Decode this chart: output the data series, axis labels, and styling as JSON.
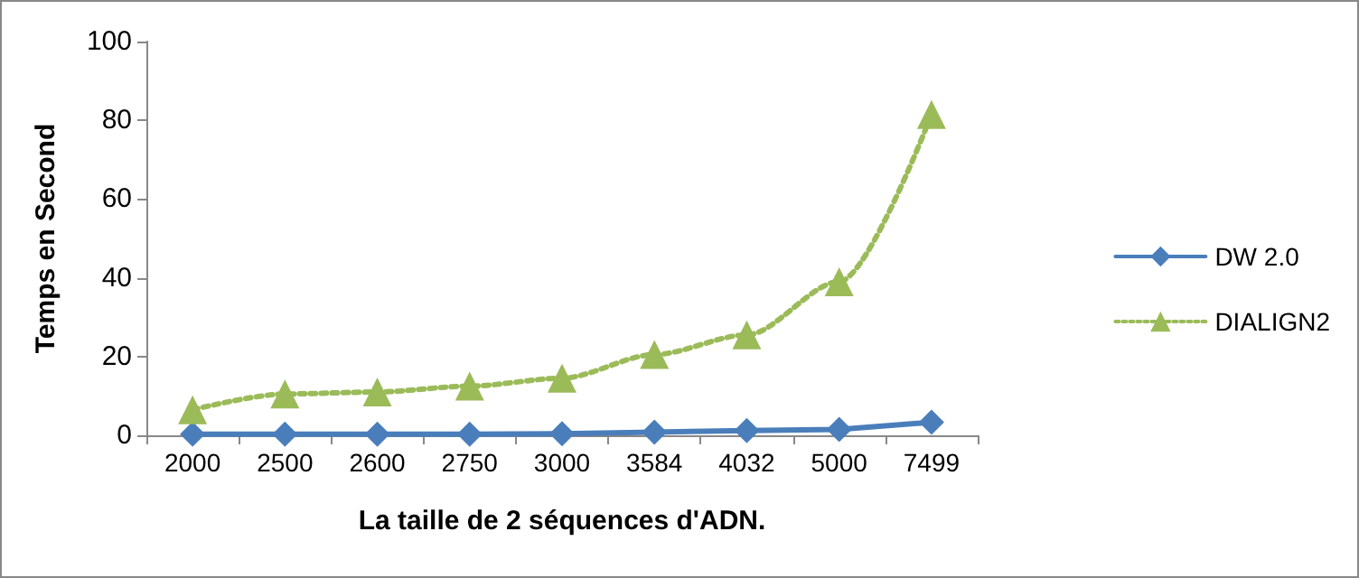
{
  "chart_data": {
    "type": "line",
    "xlabel": "La taille de 2 séquences d'ADN.",
    "ylabel": "Temps en Second",
    "categories": [
      "2000",
      "2500",
      "2600",
      "2750",
      "3000",
      "3584",
      "4032",
      "5000",
      "7499"
    ],
    "series": [
      {
        "name": "DW 2.0",
        "color": "#4a7ebb",
        "marker": "diamond",
        "line_style": "solid",
        "values": [
          0.3,
          0.3,
          0.3,
          0.3,
          0.4,
          0.8,
          1.2,
          1.5,
          3.3
        ]
      },
      {
        "name": "DIALIGN2",
        "color": "#9bbb59",
        "marker": "triangle",
        "line_style": "dotted",
        "values": [
          6.5,
          10.5,
          11,
          12.5,
          14.5,
          20.5,
          25.5,
          39,
          81.5
        ]
      }
    ],
    "ylim": [
      0,
      100
    ],
    "yticks": [
      0,
      20,
      40,
      60,
      80,
      100
    ],
    "grid": false,
    "legend": "right"
  }
}
